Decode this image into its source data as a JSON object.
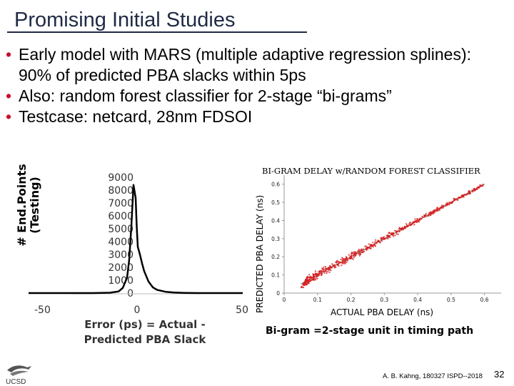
{
  "slide": {
    "title": "Promising Initial Studies",
    "bullets": [
      "Early model with MARS (multiple adaptive regression splines): 90% of predicted PBA slacks within 5ps",
      "Also: random forest classifier for 2-stage “bi-grams”",
      "Testcase: netcard, 28nm FDSOI"
    ],
    "caption": "Bi-gram =2-stage unit in timing path",
    "footer": "A. B. Kahng, 180327 ISPD--2018",
    "page_number": "32",
    "logo_text": "UCSD",
    "accent_color": "#c8102e",
    "title_color": "#1f2a44"
  },
  "chart_data": [
    {
      "type": "line",
      "title": "",
      "xlabel": "Error (ps) = Actual - Predicted PBA Slack",
      "ylabel_lines": [
        "# End.Points",
        "(Testing)"
      ],
      "x_ticks": [
        "-50",
        "0",
        "50"
      ],
      "y_ticks": [
        "9000",
        "8000",
        "7000",
        "6000",
        "5000",
        "4000",
        "3000",
        "2000",
        "1000",
        "0"
      ],
      "xlim": [
        -50,
        50
      ],
      "ylim": [
        0,
        9000
      ],
      "grid": false,
      "series": [
        {
          "x": [
            -50,
            -30,
            -20,
            -12,
            -8,
            -6,
            -4,
            -3,
            -2,
            -1,
            0,
            0.5,
            1,
            1.5,
            2,
            3,
            4,
            6,
            8,
            10,
            14,
            18,
            22,
            30,
            40,
            50
          ],
          "y": [
            0,
            0,
            0,
            30,
            120,
            400,
            1200,
            2600,
            5200,
            8400,
            7400,
            5200,
            3600,
            3300,
            3000,
            2300,
            1700,
            900,
            450,
            250,
            100,
            40,
            15,
            0,
            0,
            0
          ]
        }
      ]
    },
    {
      "type": "scatter",
      "title": "BI-GRAM DELAY w/RANDOM FOREST CLASSIFIER",
      "xlabel": "ACTUAL PBA DELAY (ns)",
      "ylabel": "PREDICTED PBA DELAY (ns)",
      "x_ticks": [
        "0",
        "0.1",
        "0.2",
        "0.3",
        "0.4",
        "0.5",
        "0.6"
      ],
      "y_ticks": [
        "0",
        "0.1",
        "0.2",
        "0.3",
        "0.4",
        "0.5",
        "0.6"
      ],
      "xlim": [
        0,
        0.65
      ],
      "ylim": [
        0,
        0.65
      ],
      "grid": false,
      "point_color": "#d42020",
      "reference_line": {
        "color": "#666666",
        "from": [
          0.05,
          0.05
        ],
        "to": [
          0.6,
          0.6
        ]
      },
      "trend": {
        "x_start": 0.06,
        "x_end": 0.6,
        "spread": 0.01
      }
    }
  ]
}
